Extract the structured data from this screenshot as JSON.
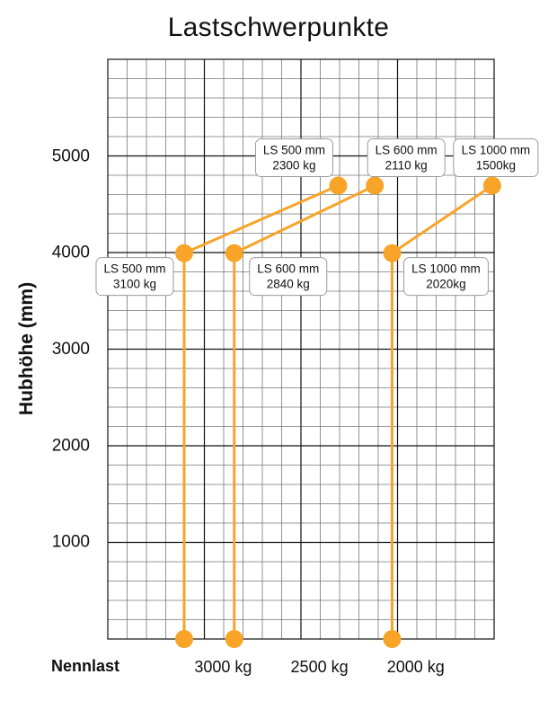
{
  "chart_data": {
    "type": "line",
    "title": "Lastschwerpunkte",
    "ylabel": "Hubhöhe (mm)",
    "xlabel": "Nennlast",
    "ylim": [
      0,
      5800
    ],
    "y_ticks": [
      1000,
      2000,
      3000,
      4000,
      5000
    ],
    "x_ticks": [
      {
        "label": "3000 kg",
        "value": 3000
      },
      {
        "label": "2500 kg",
        "value": 2500
      },
      {
        "label": "2000 kg",
        "value": 2000
      }
    ],
    "grid": true,
    "series_color": "#f7a428",
    "series": [
      {
        "name": "LS 500 mm",
        "points": [
          {
            "x": 3100,
            "y": 0
          },
          {
            "x": 3100,
            "y": 4000,
            "label": [
              "LS 500 mm",
              "3100 kg"
            ]
          },
          {
            "x": 2300,
            "y": 4700,
            "label": [
              "LS 500 mm",
              "2300 kg"
            ]
          }
        ]
      },
      {
        "name": "LS 600 mm",
        "points": [
          {
            "x": 2840,
            "y": 0
          },
          {
            "x": 2840,
            "y": 4000,
            "label": [
              "LS 600 mm",
              "2840 kg"
            ]
          },
          {
            "x": 2110,
            "y": 4700,
            "label": [
              "LS 600 mm",
              "2110 kg"
            ]
          }
        ]
      },
      {
        "name": "LS 1000 mm",
        "points": [
          {
            "x": 2020,
            "y": 0
          },
          {
            "x": 2020,
            "y": 4000,
            "label": [
              "LS 1000 mm",
              "2020kg"
            ]
          },
          {
            "x": 1500,
            "y": 4700,
            "label": [
              "LS 1000 mm",
              "1500kg"
            ]
          }
        ]
      }
    ]
  }
}
